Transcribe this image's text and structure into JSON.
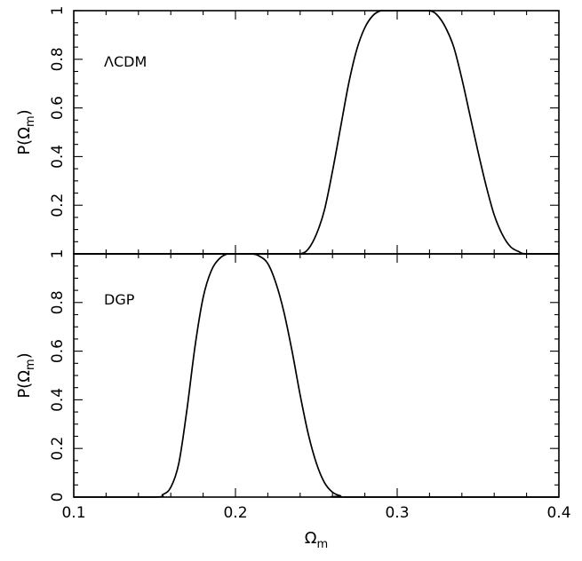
{
  "chart_data": [
    {
      "type": "line",
      "panel_label": "ΛCDM",
      "ylabel": "P(Ω",
      "ylabel_sub": "m",
      "ylabel_close": ")",
      "xlim": [
        0.1,
        0.4
      ],
      "ylim": [
        0,
        1
      ],
      "yticks": [
        "0.2",
        "0.4",
        "0.6",
        "0.8",
        "1"
      ],
      "series": [
        {
          "x": [
            0.1,
            0.23,
            0.24,
            0.245,
            0.25,
            0.255,
            0.26,
            0.265,
            0.27,
            0.275,
            0.28,
            0.285,
            0.29,
            0.295,
            0.3,
            0.31,
            0.32,
            0.325,
            0.33,
            0.335,
            0.34,
            0.345,
            0.35,
            0.355,
            0.36,
            0.365,
            0.37,
            0.375,
            0.38,
            0.4
          ],
          "y": [
            0,
            0,
            0,
            0.02,
            0.08,
            0.18,
            0.34,
            0.52,
            0.7,
            0.84,
            0.93,
            0.98,
            1.0,
            1.0,
            1.0,
            1.0,
            1.0,
            0.98,
            0.93,
            0.85,
            0.72,
            0.57,
            0.42,
            0.28,
            0.16,
            0.08,
            0.03,
            0.01,
            0,
            0
          ]
        }
      ]
    },
    {
      "type": "line",
      "panel_label": "DGP",
      "ylabel": "P(Ω",
      "ylabel_sub": "m",
      "ylabel_close": ")",
      "xlabel": "Ω",
      "xlabel_sub": "m",
      "xlim": [
        0.1,
        0.4
      ],
      "ylim": [
        0,
        1
      ],
      "xticks": [
        "0.1",
        "0.2",
        "0.3",
        "0.4"
      ],
      "yticks": [
        "0",
        "0.2",
        "0.4",
        "0.6",
        "0.8",
        "1"
      ],
      "series": [
        {
          "x": [
            0.1,
            0.15,
            0.155,
            0.16,
            0.165,
            0.17,
            0.175,
            0.18,
            0.185,
            0.19,
            0.195,
            0.2,
            0.21,
            0.215,
            0.22,
            0.225,
            0.23,
            0.235,
            0.24,
            0.245,
            0.25,
            0.255,
            0.26,
            0.265,
            0.27,
            0.4
          ],
          "y": [
            0,
            0,
            0.01,
            0.04,
            0.14,
            0.36,
            0.62,
            0.82,
            0.93,
            0.98,
            1.0,
            1.0,
            1.0,
            0.99,
            0.96,
            0.88,
            0.76,
            0.6,
            0.42,
            0.26,
            0.14,
            0.06,
            0.02,
            0.005,
            0,
            0
          ]
        }
      ]
    }
  ]
}
